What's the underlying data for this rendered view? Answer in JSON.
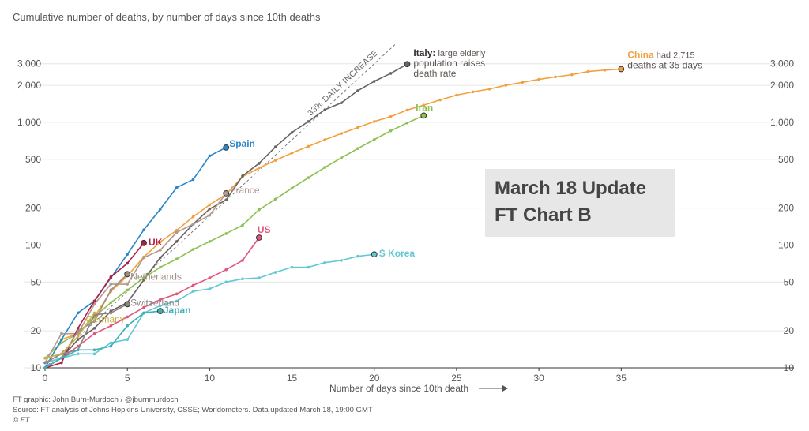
{
  "subtitle": "Cumulative number of deaths, by number of days since 10th deaths",
  "update_box": {
    "line1": "March 18 Update",
    "line2": "FT Chart B"
  },
  "footer": {
    "credit": "FT graphic: John Burn-Murdoch / @jburnmurdoch",
    "source": "Source: FT analysis of Johns Hopkins University, CSSE; Worldometers. Data updated March 18, 19:00 GMT",
    "copyright": "© FT"
  },
  "chart_data": {
    "type": "line",
    "title": "Cumulative number of deaths, by number of days since 10th deaths",
    "xlabel": "Number of days since 10th death",
    "ylabel": "",
    "xlim": [
      0,
      43
    ],
    "ylim": [
      10,
      4200
    ],
    "y_scale": "log",
    "x_ticks": [
      0,
      5,
      10,
      15,
      20,
      25,
      30,
      35
    ],
    "y_ticks": [
      10,
      20,
      50,
      100,
      200,
      500,
      1000,
      2000,
      3000
    ],
    "y_tick_labels": [
      "10",
      "20",
      "50",
      "100",
      "200",
      "500",
      "1,000",
      "2,000",
      "3,000"
    ],
    "grid": true,
    "reference_line": {
      "label": "33% DAILY INCREASE",
      "start": [
        0,
        10
      ],
      "daily_growth": 1.33,
      "end_x": 21.3
    },
    "series": [
      {
        "name": "China",
        "color": "#f2a03d",
        "end_marker": true,
        "values": [
          10,
          17,
          19,
          26,
          42,
          56,
          80,
          106,
          132,
          170,
          213,
          259,
          361,
          425,
          490,
          563,
          637,
          722,
          811,
          908,
          1016,
          1113,
          1259,
          1380,
          1523,
          1665,
          1770,
          1868,
          2004,
          2118,
          2236,
          2345,
          2442,
          2592,
          2663,
          2715
        ]
      },
      {
        "name": "Italy",
        "color": "#6a6360",
        "end_marker": true,
        "values": [
          10,
          12,
          17,
          21,
          29,
          34,
          52,
          79,
          107,
          148,
          197,
          233,
          366,
          463,
          631,
          827,
          1016,
          1266,
          1441,
          1809,
          2158,
          2503,
          2978
        ]
      },
      {
        "name": "Iran",
        "color": "#8cc152",
        "end_marker": true,
        "values": [
          12,
          16,
          19,
          26,
          34,
          43,
          54,
          66,
          77,
          92,
          107,
          124,
          145,
          194,
          237,
          291,
          354,
          429,
          514,
          611,
          724,
          853,
          988,
          1135
        ]
      },
      {
        "name": "Spain",
        "color": "#2b86c8",
        "end_marker": true,
        "values": [
          10,
          17,
          28,
          35,
          54,
          84,
          133,
          196,
          294,
          342,
          533,
          623
        ]
      },
      {
        "name": "France",
        "color": "#b0988c",
        "end_marker": true,
        "values": [
          11,
          19,
          19,
          33,
          48,
          48,
          79,
          91,
          127,
          148,
          175,
          264
        ]
      },
      {
        "name": "UK",
        "color": "#b01e44",
        "end_marker": true,
        "values": [
          10,
          11,
          21,
          35,
          55,
          71,
          104
        ]
      },
      {
        "name": "US",
        "color": "#e2557d",
        "end_marker": true,
        "values": [
          11,
          12,
          15,
          19,
          22,
          26,
          31,
          36,
          40,
          47,
          54,
          63,
          75,
          115
        ]
      },
      {
        "name": "S Korea",
        "color": "#62c8d3",
        "end_marker": true,
        "values": [
          11,
          12,
          13,
          13,
          16,
          17,
          28,
          32,
          35,
          42,
          44,
          50,
          53,
          54,
          60,
          66,
          66,
          72,
          75,
          81,
          84
        ]
      },
      {
        "name": "Netherlands",
        "color": "#9f8d7e",
        "end_marker": true,
        "values": [
          10,
          12,
          20,
          24,
          43,
          58
        ]
      },
      {
        "name": "Switzerland",
        "color": "#8a8583",
        "end_marker": true,
        "values": [
          11,
          13,
          14,
          27,
          28,
          33
        ]
      },
      {
        "name": "Germany",
        "color": "#c9b04a",
        "end_marker": false,
        "values": [
          12,
          13,
          18,
          28
        ]
      },
      {
        "name": "Japan",
        "color": "#3ab0b7",
        "end_marker": true,
        "values": [
          10,
          12,
          14,
          14,
          15,
          22,
          28,
          29
        ]
      }
    ],
    "annotations": [
      {
        "series": "China",
        "bold": "China",
        "text": "had 2,715",
        "text2": "deaths at 35 days"
      },
      {
        "series": "Italy",
        "bold": "Italy:",
        "text": "large elderly",
        "text2": "population raises",
        "text3": "death rate"
      },
      {
        "series": "Iran",
        "bold": "Iran"
      },
      {
        "series": "Spain",
        "bold": "Spain"
      },
      {
        "series": "France",
        "bold": "France"
      },
      {
        "series": "UK",
        "bold": "UK"
      },
      {
        "series": "US",
        "bold": "US"
      },
      {
        "series": "S Korea",
        "bold": "S Korea"
      },
      {
        "series": "Netherlands",
        "bold": "Netherlands"
      },
      {
        "series": "Switzerland",
        "bold": "Switzerland"
      },
      {
        "series": "Germany",
        "bold": "Germany"
      },
      {
        "series": "Japan",
        "bold": "Japan"
      }
    ]
  }
}
